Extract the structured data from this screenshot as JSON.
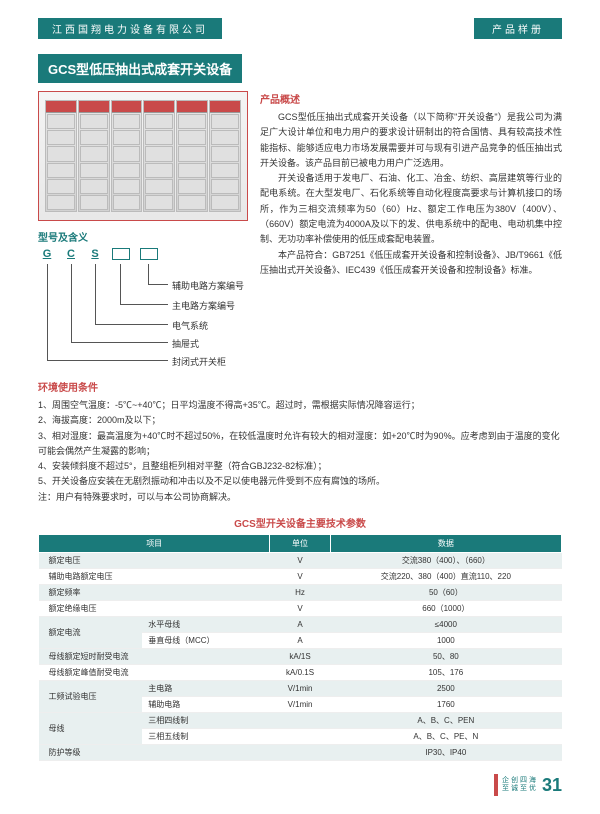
{
  "header": {
    "company": "江西国翔电力设备有限公司",
    "catalog": "产品样册"
  },
  "title": "GCS型低压抽出式成套开关设备",
  "model_section": {
    "label": "型号及含义",
    "letters": [
      "G",
      "C",
      "S"
    ],
    "brackets": [
      "辅助电路方案编号",
      "主电路方案编号",
      "电气系统",
      "抽屉式",
      "封闭式开关柜"
    ]
  },
  "overview": {
    "title": "产品概述",
    "p1": "GCS型低压抽出式成套开关设备（以下简称\"开关设备\"）是我公司为满足广大设计单位和电力用户的要求设计研制出的符合国情、具有较高技术性能指标、能够适应电力市场发展需要并可与现有引进产品竞争的低压抽出式开关设备。该产品目前已被电力用户广泛选用。",
    "p2": "开关设备适用于发电厂、石油、化工、冶金、纺织、高层建筑等行业的配电系统。在大型发电厂、石化系统等自动化程度高要求与计算机接口的场所，作为三相交流频率为50（60）Hz、额定工作电压为380V（400V）、（660V）额定电流为4000A及以下的发、供电系统中的配电、电动机集中控制、无功功率补偿使用的低压成套配电装置。",
    "p3": "本产品符合：GB7251《低压成套开关设备和控制设备》、JB/T9661《低压抽出式开关设备》、IEC439《低压成套开关设备和控制设备》标准。"
  },
  "env": {
    "title": "环境使用条件",
    "items": [
      "1、周围空气温度：-5℃~+40℃；日平均温度不得高+35℃。超过时，需根据实际情况降容运行；",
      "2、海拔高度：2000m及以下；",
      "3、相对湿度：最高温度为+40℃时不超过50%，在较低温度时允许有较大的相对湿度：如+20℃时为90%。应考虑到由于温度的变化可能会偶然产生凝露的影响；",
      "4、安装倾斜度不超过5°，且整组柜列相对平整（符合GBJ232-82标准）；",
      "5、开关设备应安装在无剧烈振动和冲击以及不足以使电器元件受到不应有腐蚀的场所。",
      "注：用户有特殊要求时，可以与本公司协商解决。"
    ]
  },
  "table": {
    "title": "GCS型开关设备主要技术参数",
    "headers": [
      "项目",
      "单位",
      "数据"
    ],
    "rows": [
      {
        "label": "额定电压",
        "sub": "",
        "unit": "V",
        "data": "交流380（400）、（660）",
        "alt": true
      },
      {
        "label": "辅助电路额定电压",
        "sub": "",
        "unit": "V",
        "data": "交流220、380（400）直流110、220",
        "alt": false
      },
      {
        "label": "额定频率",
        "sub": "",
        "unit": "Hz",
        "data": "50（60）",
        "alt": true
      },
      {
        "label": "额定绝缘电压",
        "sub": "",
        "unit": "V",
        "data": "660（1000）",
        "alt": false
      },
      {
        "label": "额定电流",
        "sub": "水平母线",
        "unit": "A",
        "data": "≤4000",
        "alt": true,
        "rowspan": 2
      },
      {
        "label": "",
        "sub": "垂直母线（MCC）",
        "unit": "A",
        "data": "1000",
        "alt": false
      },
      {
        "label": "母线额定短时耐受电流",
        "sub": "",
        "unit": "kA/1S",
        "data": "50、80",
        "alt": true
      },
      {
        "label": "母线额定峰值耐受电流",
        "sub": "",
        "unit": "kA/0.1S",
        "data": "105、176",
        "alt": false
      },
      {
        "label": "工频试验电压",
        "sub": "主电路",
        "unit": "V/1min",
        "data": "2500",
        "alt": true,
        "rowspan": 2
      },
      {
        "label": "",
        "sub": "辅助电路",
        "unit": "V/1min",
        "data": "1760",
        "alt": false
      },
      {
        "label": "母线",
        "sub": "三相四线制",
        "unit": "",
        "data": "A、B、C、PEN",
        "alt": true,
        "rowspan": 2
      },
      {
        "label": "",
        "sub": "三相五线制",
        "unit": "",
        "data": "A、B、C、PE、N",
        "alt": false
      },
      {
        "label": "防护等级",
        "sub": "",
        "unit": "",
        "data": "IP30、IP40",
        "alt": true
      }
    ]
  },
  "footer": {
    "slogan1": "企创四海",
    "slogan2": "至诚至优",
    "page": "31"
  },
  "colors": {
    "teal": "#1a7a7a",
    "red": "#c94a4a"
  }
}
